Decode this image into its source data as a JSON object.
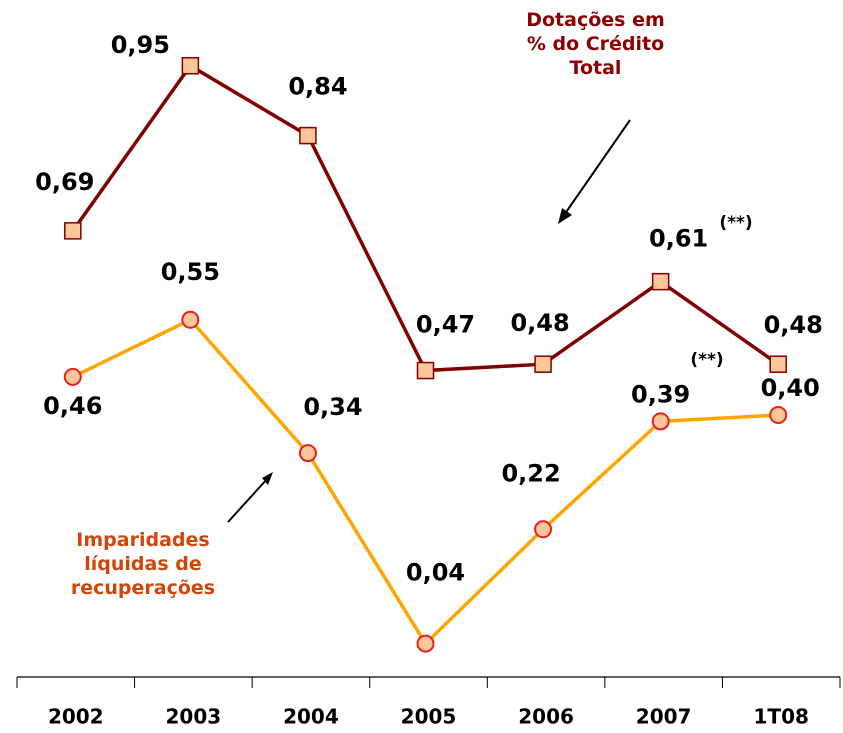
{
  "chart_data": {
    "type": "line",
    "categories": [
      "2002",
      "2003",
      "2004",
      "2005",
      "2006",
      "2007",
      "1T08"
    ],
    "series": [
      {
        "name": "Dotações em % do Crédito Total",
        "color": "#800000",
        "marker_fill": "#fbc79a",
        "marker_stroke": "#800000",
        "marker": "square",
        "values": [
          0.69,
          0.95,
          0.84,
          0.47,
          0.48,
          0.61,
          0.48
        ],
        "value_labels": [
          "0,69",
          "0,95",
          "0,84",
          "0,47",
          "0,48",
          "0,61",
          "0,48"
        ]
      },
      {
        "name": "Imparidades líquidas de recuperações",
        "color": "#ffa500",
        "marker_fill": "#fbc79a",
        "marker_stroke": "#e8201a",
        "marker": "circle",
        "values": [
          0.46,
          0.55,
          0.34,
          0.04,
          0.22,
          0.39,
          0.4
        ],
        "value_labels": [
          "0,46",
          "0,55",
          "0,34",
          "0,04",
          "0,22",
          "0,39",
          "0,40"
        ]
      }
    ],
    "annotations": [
      "(**)",
      "(**)"
    ],
    "ylim": [
      0,
      1.0
    ]
  }
}
